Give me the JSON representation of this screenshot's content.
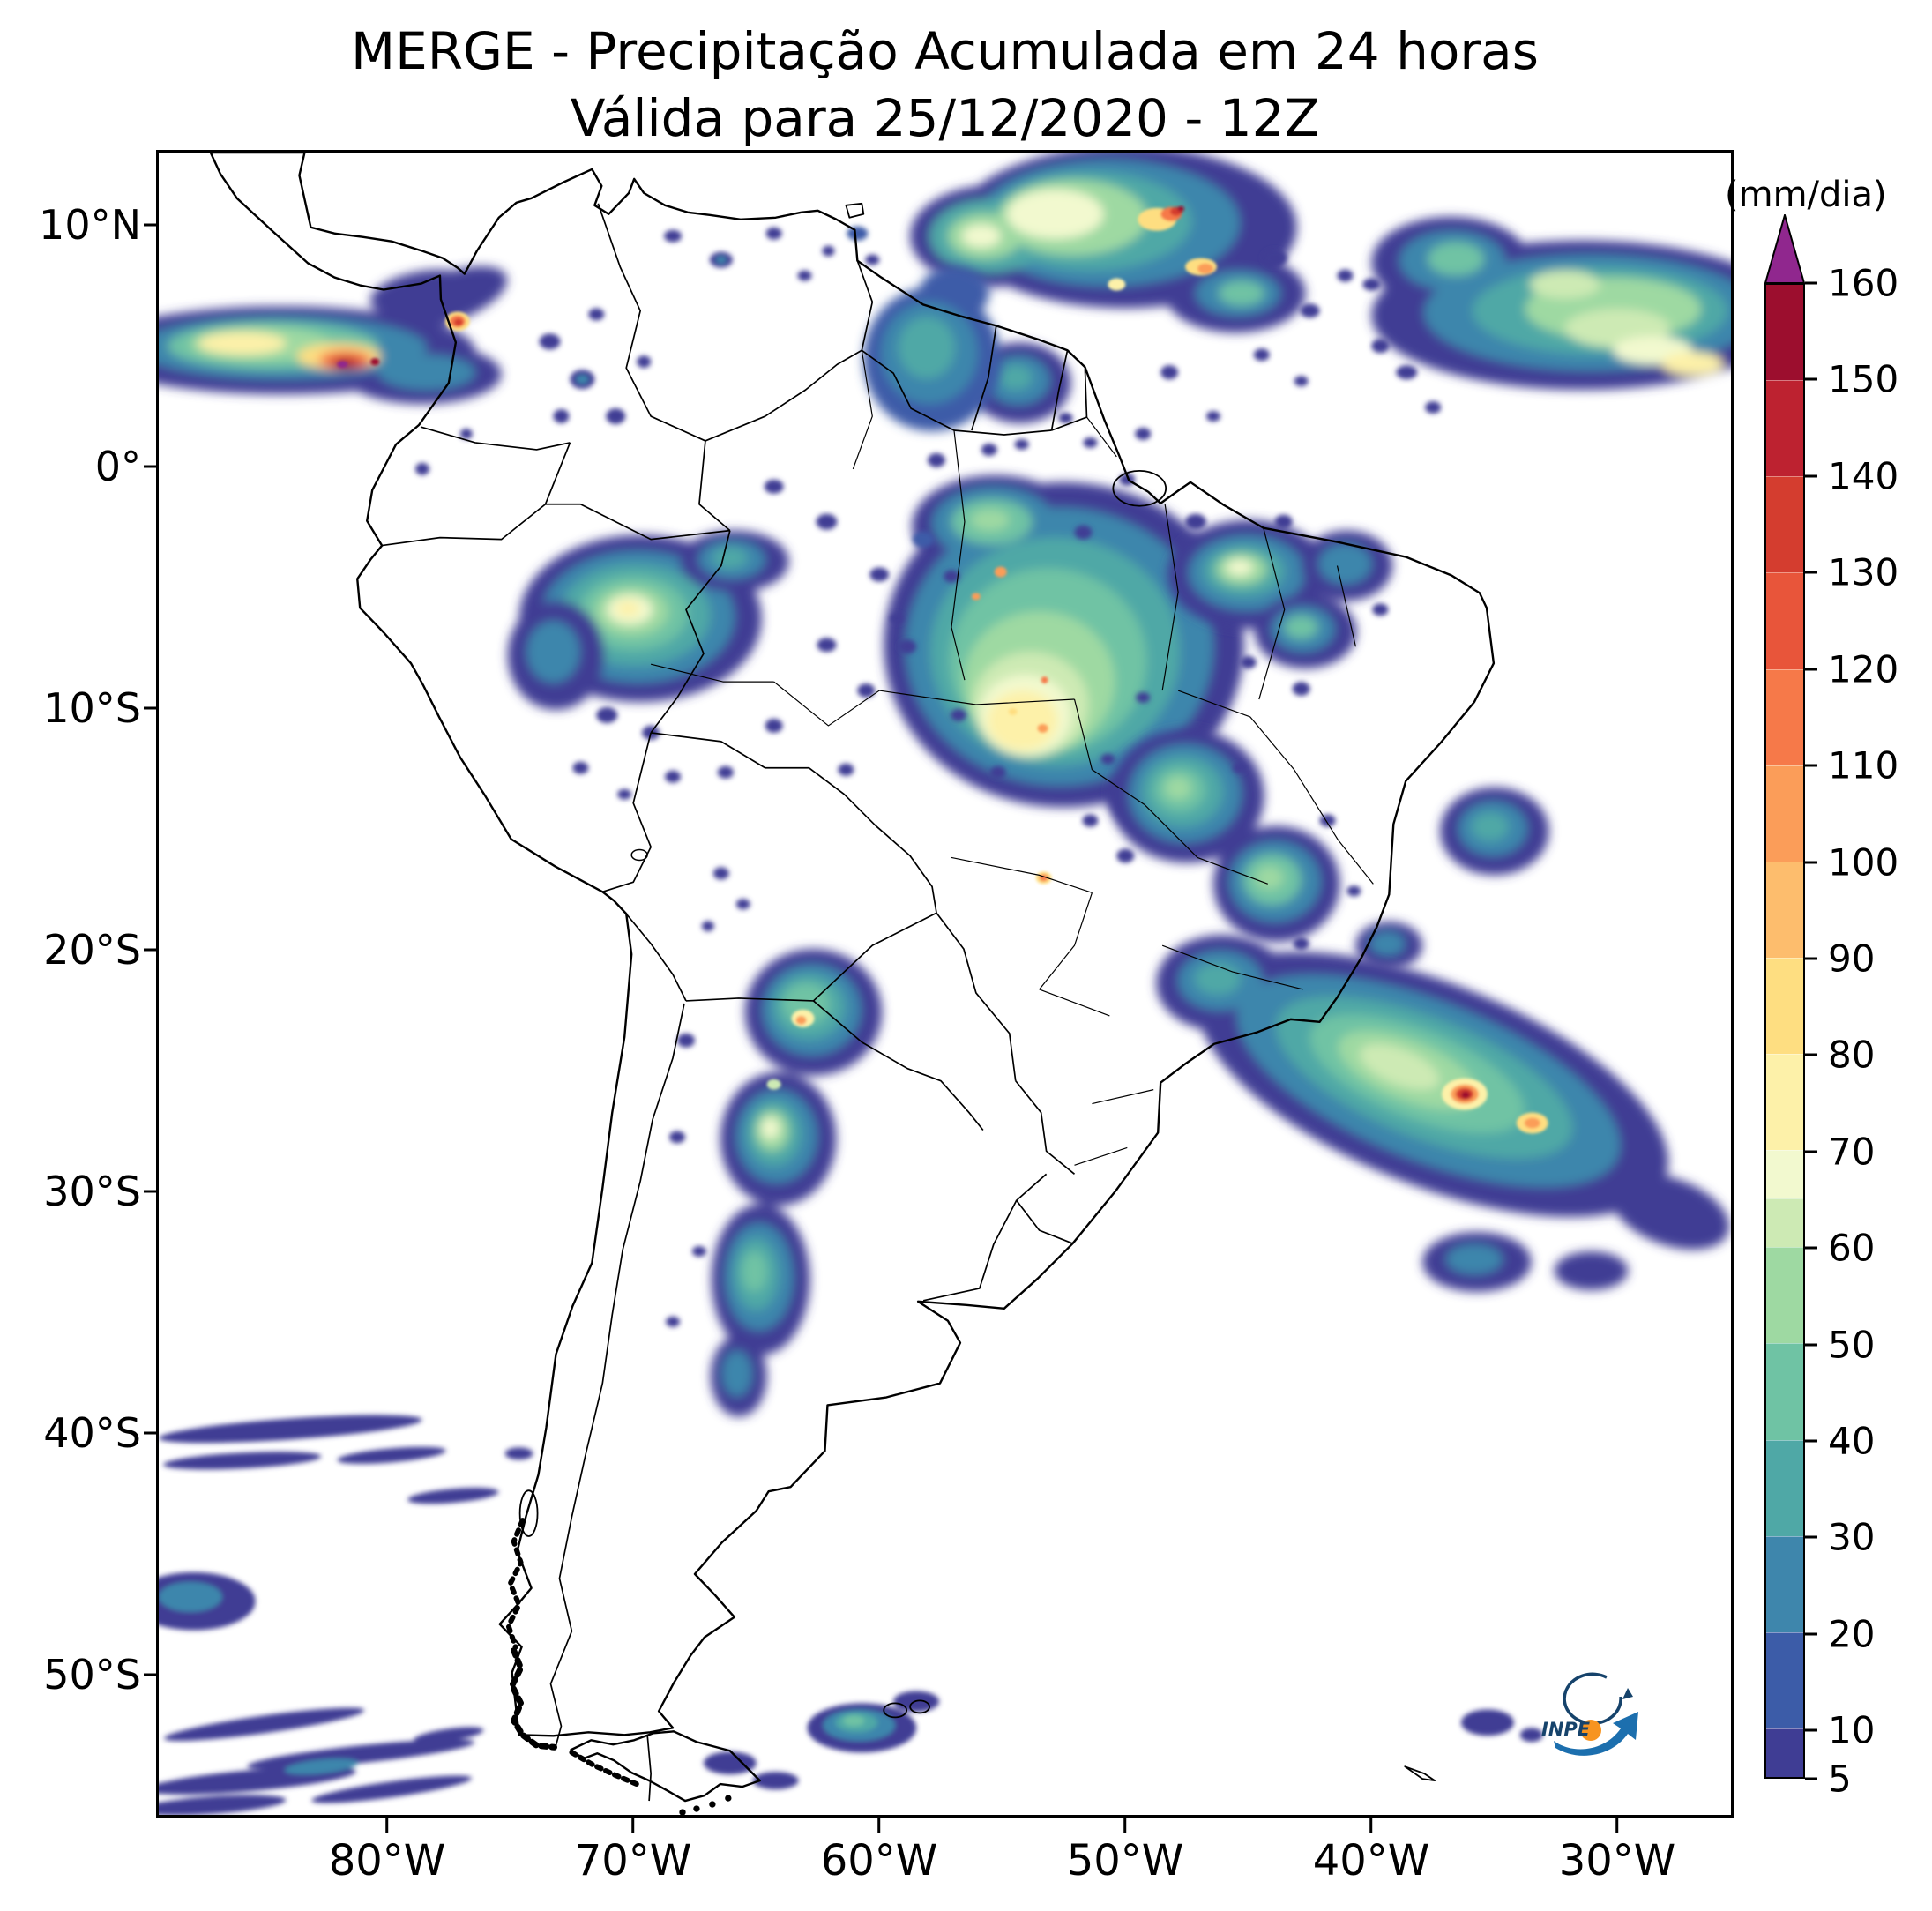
{
  "title": {
    "line1": "MERGE - Precipitação Acumulada em 24 horas",
    "line2": "Válida para 25/12/2020 - 12Z"
  },
  "axes": {
    "x_ticks": [
      "80°W",
      "70°W",
      "60°W",
      "50°W",
      "40°W",
      "30°W"
    ],
    "y_ticks": [
      "10°N",
      "0°",
      "10°S",
      "20°S",
      "30°S",
      "40°S",
      "50°S"
    ]
  },
  "colorbar": {
    "label": "(mm/dia)",
    "unit": "mm/dia",
    "min": 5,
    "max": 160,
    "ticks": [
      160,
      150,
      140,
      130,
      120,
      110,
      100,
      90,
      80,
      70,
      60,
      50,
      40,
      30,
      20,
      10,
      5
    ],
    "extend_color": "#90278e",
    "levels": [
      {
        "from": 5,
        "to": 10,
        "color": "#3f3d94"
      },
      {
        "from": 10,
        "to": 20,
        "color": "#3c5ca8"
      },
      {
        "from": 20,
        "to": 30,
        "color": "#3e86ac"
      },
      {
        "from": 30,
        "to": 40,
        "color": "#4fa8a6"
      },
      {
        "from": 40,
        "to": 50,
        "color": "#6fc3a4"
      },
      {
        "from": 50,
        "to": 60,
        "color": "#9ed9a2"
      },
      {
        "from": 60,
        "to": 65,
        "color": "#cdeab4"
      },
      {
        "from": 65,
        "to": 70,
        "color": "#f2f9cf"
      },
      {
        "from": 70,
        "to": 80,
        "color": "#fdf1a9"
      },
      {
        "from": 80,
        "to": 90,
        "color": "#fede81"
      },
      {
        "from": 90,
        "to": 100,
        "color": "#fdbd6d"
      },
      {
        "from": 100,
        "to": 110,
        "color": "#fb9d59"
      },
      {
        "from": 110,
        "to": 120,
        "color": "#f67949"
      },
      {
        "from": 120,
        "to": 130,
        "color": "#e8553a"
      },
      {
        "from": 130,
        "to": 140,
        "color": "#d43d2f"
      },
      {
        "from": 140,
        "to": 150,
        "color": "#bd2230"
      },
      {
        "from": 150,
        "to": 160,
        "color": "#9c0e2e"
      }
    ]
  },
  "logo": {
    "text": "INPE"
  }
}
